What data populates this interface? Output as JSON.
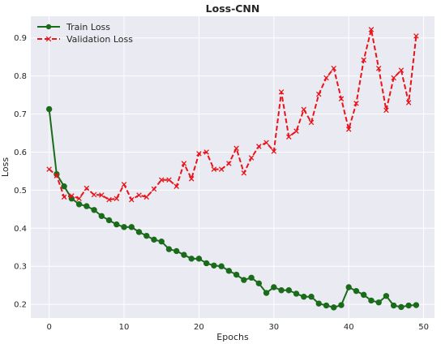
{
  "chart_data": {
    "type": "line",
    "title": "Loss-CNN",
    "xlabel": "Epochs",
    "ylabel": "Loss",
    "xlim": [
      -2.45,
      51.45
    ],
    "ylim": [
      0.164,
      0.957
    ],
    "xticks": [
      0,
      10,
      20,
      30,
      40,
      50
    ],
    "yticks": [
      0.2,
      0.3,
      0.4,
      0.5,
      0.6,
      0.7,
      0.8,
      0.9
    ],
    "grid": true,
    "legend_position": "top-left",
    "x": [
      0,
      1,
      2,
      3,
      4,
      5,
      6,
      7,
      8,
      9,
      10,
      11,
      12,
      13,
      14,
      15,
      16,
      17,
      18,
      19,
      20,
      21,
      22,
      23,
      24,
      25,
      26,
      27,
      28,
      29,
      30,
      31,
      32,
      33,
      34,
      35,
      36,
      37,
      38,
      39,
      40,
      41,
      42,
      43,
      44,
      45,
      46,
      47,
      48,
      49
    ],
    "series": [
      {
        "name": "Train Loss",
        "color": "#1a6b1a",
        "style": "solid",
        "marker": "circle",
        "values": [
          0.713,
          0.542,
          0.51,
          0.478,
          0.463,
          0.458,
          0.448,
          0.432,
          0.421,
          0.41,
          0.403,
          0.403,
          0.39,
          0.38,
          0.37,
          0.365,
          0.345,
          0.34,
          0.33,
          0.32,
          0.32,
          0.308,
          0.302,
          0.3,
          0.288,
          0.278,
          0.264,
          0.27,
          0.255,
          0.23,
          0.245,
          0.237,
          0.237,
          0.228,
          0.22,
          0.22,
          0.202,
          0.197,
          0.192,
          0.198,
          0.245,
          0.235,
          0.225,
          0.21,
          0.205,
          0.222,
          0.197,
          0.193,
          0.197,
          0.198
        ]
      },
      {
        "name": "Validation Loss",
        "color": "#e8141a",
        "style": "dashed",
        "marker": "x",
        "values": [
          0.555,
          0.538,
          0.482,
          0.485,
          0.478,
          0.505,
          0.488,
          0.487,
          0.475,
          0.478,
          0.515,
          0.475,
          0.487,
          0.482,
          0.503,
          0.527,
          0.527,
          0.51,
          0.57,
          0.53,
          0.596,
          0.6,
          0.555,
          0.555,
          0.57,
          0.61,
          0.545,
          0.585,
          0.615,
          0.625,
          0.602,
          0.758,
          0.64,
          0.655,
          0.712,
          0.678,
          0.752,
          0.795,
          0.82,
          0.74,
          0.66,
          0.728,
          0.842,
          0.922,
          0.82,
          0.71,
          0.795,
          0.815,
          0.73,
          0.905
        ]
      }
    ]
  }
}
